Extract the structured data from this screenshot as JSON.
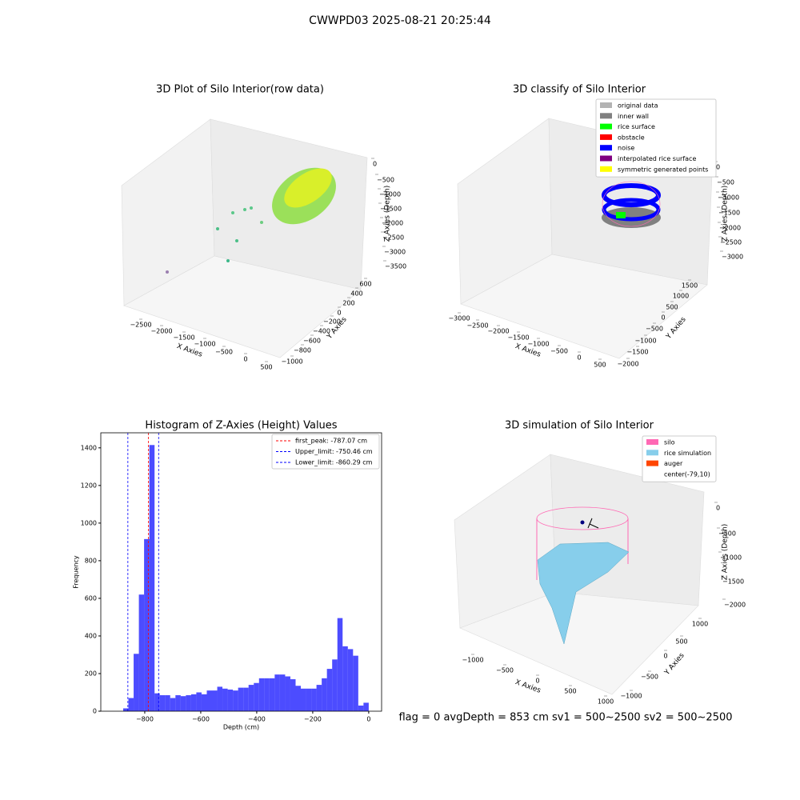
{
  "title": "CWWPD03 2025-08-21 20:25:44",
  "footer": "flag = 0     avgDepth = 853 cm  sv1 = 500~2500  sv2 = 500~2500",
  "chart_data": [
    {
      "type": "scatter3d",
      "title": "3D Plot of Silo Interior(row data)",
      "xlabel": "X Axies",
      "ylabel": "Y Axies",
      "zlabel": "Z Axies (Depth)",
      "xticks": [
        {
          "value": -2500,
          "label": "−2500"
        },
        {
          "value": -2000,
          "label": "−2000"
        },
        {
          "value": -1500,
          "label": "−1500"
        },
        {
          "value": -1000,
          "label": "−1000"
        },
        {
          "value": -500,
          "label": "−500"
        },
        0,
        500
      ],
      "yticks": [
        {
          "value": -1000,
          "label": "−1000"
        },
        {
          "value": -800,
          "label": "−800"
        },
        {
          "value": -600,
          "label": "−600"
        },
        {
          "value": -400,
          "label": "−400"
        },
        {
          "value": -200,
          "label": "−200"
        },
        0,
        200,
        400,
        600
      ],
      "zticks": [
        0,
        {
          "value": -500,
          "label": "−500"
        },
        {
          "value": -1000,
          "label": "−1000"
        },
        {
          "value": -1500,
          "label": "−1500"
        },
        {
          "value": -2000,
          "label": "−2000"
        },
        {
          "value": -2500,
          "label": "−2500"
        },
        {
          "value": -3000,
          "label": "−3000"
        },
        {
          "value": -3500,
          "label": "−3500"
        }
      ]
    },
    {
      "type": "scatter3d",
      "title": "3D classify of Silo Interior",
      "xlabel": "X Axies",
      "ylabel": "Y Axies",
      "zlabel": "Z Axies (Depth)",
      "legend": [
        {
          "name": "original data",
          "color": "#b3b3b3"
        },
        {
          "name": "inner wall",
          "color": "#808080"
        },
        {
          "name": "rice surface",
          "color": "#00ff00"
        },
        {
          "name": "obstacle",
          "color": "#ff0000"
        },
        {
          "name": "noise",
          "color": "#0000ff"
        },
        {
          "name": "interpolated rice surface",
          "color": "#800080"
        },
        {
          "name": "symmetric generated points",
          "color": "#ffff00"
        }
      ],
      "xticks": [
        {
          "value": -3000,
          "label": "−3000"
        },
        {
          "value": -2500,
          "label": "−2500"
        },
        {
          "value": -2000,
          "label": "−2000"
        },
        {
          "value": -1500,
          "label": "−1500"
        },
        {
          "value": -1000,
          "label": "−1000"
        },
        {
          "value": -500,
          "label": "−500"
        },
        0,
        500
      ],
      "yticks": [
        {
          "value": -2000,
          "label": "−2000"
        },
        {
          "value": -1500,
          "label": "−1500"
        },
        {
          "value": -1000,
          "label": "−1000"
        },
        {
          "value": -500,
          "label": "−500"
        },
        0,
        500,
        1000,
        1500
      ],
      "zticks": [
        0,
        {
          "value": -500,
          "label": "−500"
        },
        {
          "value": -1000,
          "label": "−1000"
        },
        {
          "value": -1500,
          "label": "−1500"
        },
        {
          "value": -2000,
          "label": "−2000"
        },
        {
          "value": -2500,
          "label": "−2500"
        },
        {
          "value": -3000,
          "label": "−3000"
        }
      ]
    },
    {
      "type": "histogram",
      "title": "Histogram of Z-Axies (Height) Values",
      "xlabel": "Depth (cm)",
      "ylabel": "Frequency",
      "color": "#0000ff",
      "bins": [
        -877,
        -858.3,
        -839.7,
        -821.0,
        -802.4,
        -783.7,
        -765.0,
        -746.4,
        -727.7,
        -709.1,
        -690.4,
        -671.7,
        -653.1,
        -634.4,
        -615.8,
        -597.1,
        -578.4,
        -559.8,
        -541.1,
        -522.5,
        -503.8,
        -485.1,
        -466.5,
        -447.8,
        -429.2,
        -410.5,
        -391.8,
        -373.2,
        -354.5,
        -335.9,
        -317.2,
        -298.5,
        -279.9,
        -261.2,
        -242.6,
        -223.9,
        -205.2,
        -186.6,
        -167.9,
        -149.3,
        -130.6,
        -111.9,
        -93.3,
        -74.6,
        -56.0,
        -37.3,
        -18.7,
        0
      ],
      "values": [
        15,
        70,
        305,
        620,
        915,
        1415,
        95,
        85,
        85,
        70,
        85,
        80,
        85,
        90,
        100,
        90,
        110,
        110,
        130,
        120,
        115,
        110,
        125,
        125,
        140,
        150,
        175,
        175,
        175,
        195,
        195,
        185,
        170,
        135,
        120,
        120,
        120,
        140,
        175,
        225,
        275,
        495,
        345,
        330,
        295,
        30,
        45
      ],
      "xlim": [
        -957,
        46
      ],
      "ylim": [
        0,
        1480
      ],
      "xticks": [
        {
          "value": -800,
          "label": "−800"
        },
        {
          "value": -600,
          "label": "−600"
        },
        {
          "value": -400,
          "label": "−400"
        },
        {
          "value": -200,
          "label": "−200"
        },
        0
      ],
      "yticks": [
        0,
        200,
        400,
        600,
        800,
        1000,
        1200,
        1400
      ],
      "lines": [
        {
          "name": "first_peak: -787.07 cm",
          "value": -787.07,
          "color": "#ff0000"
        },
        {
          "name": "Upper_limit: -750.46 cm",
          "value": -750.46,
          "color": "#0000ff"
        },
        {
          "name": "Lower_limit: -860.29 cm",
          "value": -860.29,
          "color": "#0000ff"
        }
      ]
    },
    {
      "type": "surface3d",
      "title": "3D simulation of Silo Interior",
      "xlabel": "X Axies",
      "ylabel": "Y Axies",
      "zlabel": "Z Axies (Depth)",
      "legend": [
        {
          "name": "silo",
          "color": "#ff69b4"
        },
        {
          "name": "rice simulation",
          "color": "#87ceeb"
        },
        {
          "name": "auger",
          "color": "#ff4500"
        },
        {
          "name": "center(-79,10)",
          "color": "#ffffff"
        }
      ],
      "xticks": [
        {
          "value": -1000,
          "label": "−1000"
        },
        {
          "value": -500,
          "label": "−500"
        },
        0,
        500,
        1000
      ],
      "yticks": [
        {
          "value": -1000,
          "label": "−1000"
        },
        {
          "value": -500,
          "label": "−500"
        },
        0,
        500,
        1000
      ],
      "zticks": [
        0,
        {
          "value": -500,
          "label": "−500"
        },
        {
          "value": -1000,
          "label": "−1000"
        },
        {
          "value": -1500,
          "label": "−1500"
        },
        {
          "value": -2000,
          "label": "−2000"
        }
      ]
    }
  ]
}
